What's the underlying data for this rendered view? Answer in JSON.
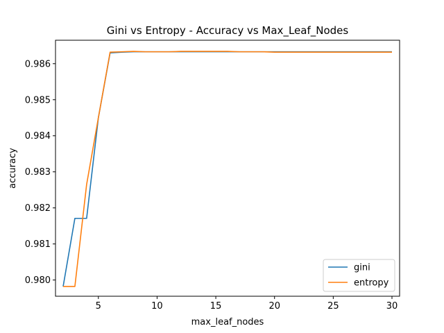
{
  "chart_data": {
    "type": "line",
    "title": "Gini vs Entropy - Accuracy vs Max_Leaf_Nodes",
    "xlabel": "max_leaf_nodes",
    "ylabel": "accuracy",
    "xlim": [
      1.35,
      30.65
    ],
    "ylim": [
      0.97955,
      0.98665
    ],
    "xticks": [
      5,
      10,
      15,
      20,
      25,
      30
    ],
    "yticks": [
      0.98,
      0.981,
      0.982,
      0.983,
      0.984,
      0.985,
      0.986
    ],
    "grid": false,
    "legend_position": "lower-right",
    "x": [
      2,
      3,
      4,
      5,
      6,
      7,
      8,
      9,
      10,
      11,
      12,
      13,
      14,
      15,
      16,
      17,
      18,
      19,
      20,
      21,
      22,
      23,
      24,
      25,
      26,
      27,
      28,
      29,
      30
    ],
    "series": [
      {
        "name": "gini",
        "color": "#1f77b4",
        "values": [
          0.97982,
          0.98171,
          0.98171,
          0.9845,
          0.9863,
          0.98632,
          0.98633,
          0.98633,
          0.98633,
          0.98633,
          0.98633,
          0.98633,
          0.98633,
          0.98633,
          0.98633,
          0.98633,
          0.98633,
          0.98633,
          0.98633,
          0.98633,
          0.98633,
          0.98633,
          0.98633,
          0.98633,
          0.98633,
          0.98633,
          0.98633,
          0.98633,
          0.98633
        ]
      },
      {
        "name": "entropy",
        "color": "#ff7f0e",
        "values": [
          0.97982,
          0.97982,
          0.98265,
          0.9845,
          0.98632,
          0.98633,
          0.98634,
          0.98633,
          0.98633,
          0.98633,
          0.98634,
          0.98634,
          0.98634,
          0.98634,
          0.98634,
          0.98633,
          0.98633,
          0.98633,
          0.98632,
          0.98632,
          0.98632,
          0.98632,
          0.98632,
          0.98632,
          0.98632,
          0.98632,
          0.98632,
          0.98632,
          0.98632
        ]
      }
    ]
  }
}
